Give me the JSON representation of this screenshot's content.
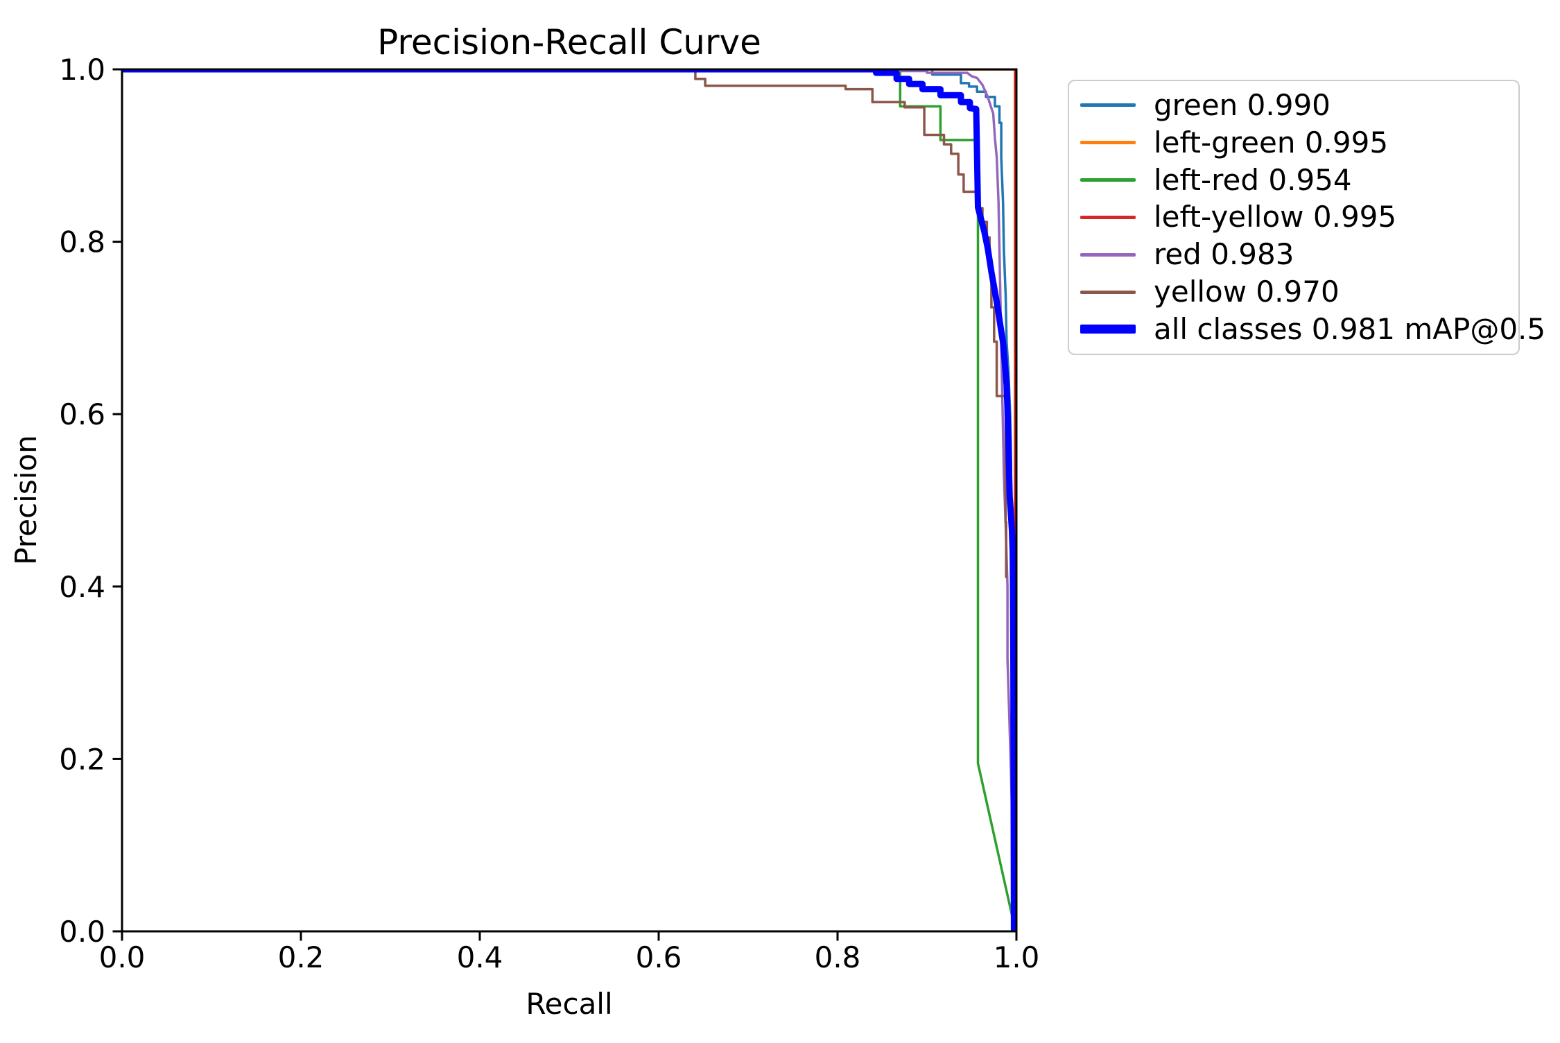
{
  "chart_data": {
    "type": "line",
    "title": "Precision-Recall Curve",
    "xlabel": "Recall",
    "ylabel": "Precision",
    "xlim": [
      0.0,
      1.0
    ],
    "ylim": [
      0.0,
      1.0
    ],
    "grid": false,
    "xticks": [
      "0.0",
      "0.2",
      "0.4",
      "0.6",
      "0.8",
      "1.0"
    ],
    "yticks": [
      "0.0",
      "0.2",
      "0.4",
      "0.6",
      "0.8",
      "1.0"
    ],
    "axis_color": "#000000",
    "legend": {
      "position": "upper-right-outside",
      "border_color": "#cccccc",
      "background": "#ffffff"
    },
    "series": [
      {
        "name": "green",
        "label": "green 0.990",
        "ap": 0.99,
        "color": "#1f77b4",
        "line_width": 3.5,
        "legend_line_width": 5,
        "points": [
          [
            0,
            1
          ],
          [
            0.906,
            1
          ],
          [
            0.906,
            0.994
          ],
          [
            0.938,
            0.994
          ],
          [
            0.938,
            0.984
          ],
          [
            0.947,
            0.984
          ],
          [
            0.947,
            0.98
          ],
          [
            0.956,
            0.98
          ],
          [
            0.956,
            0.974
          ],
          [
            0.966,
            0.974
          ],
          [
            0.966,
            0.968
          ],
          [
            0.976,
            0.968
          ],
          [
            0.976,
            0.957
          ],
          [
            0.981,
            0.957
          ],
          [
            0.981,
            0.938
          ],
          [
            0.983,
            0.938
          ],
          [
            0.983,
            0.898
          ],
          [
            0.985,
            0.845
          ],
          [
            0.986,
            0.791
          ],
          [
            0.988,
            0.737
          ],
          [
            0.989,
            0.684
          ],
          [
            0.991,
            0.652
          ],
          [
            0.993,
            0.598
          ],
          [
            0.994,
            0.544
          ],
          [
            0.994,
            0.405
          ]
        ]
      },
      {
        "name": "left-green",
        "label": "left-green 0.995",
        "ap": 0.995,
        "color": "#ff7f0e",
        "line_width": 3.5,
        "legend_line_width": 5,
        "points": [
          [
            0,
            1
          ],
          [
            0.9983,
            1
          ],
          [
            0.9983,
            0
          ]
        ]
      },
      {
        "name": "left-red",
        "label": "left-red 0.954",
        "ap": 0.954,
        "color": "#2ca02c",
        "line_width": 3.5,
        "legend_line_width": 5,
        "points": [
          [
            0,
            1
          ],
          [
            0.87,
            1
          ],
          [
            0.87,
            0.957
          ],
          [
            0.915,
            0.957
          ],
          [
            0.915,
            0.918
          ],
          [
            0.957,
            0.918
          ],
          [
            0.957,
            0.195
          ],
          [
            0.998,
            0.005
          ]
        ]
      },
      {
        "name": "left-yellow",
        "label": "left-yellow 0.995",
        "ap": 0.995,
        "color": "#d62728",
        "line_width": 3.5,
        "legend_line_width": 5,
        "points": [
          [
            0,
            1
          ],
          [
            0.9988,
            1
          ],
          [
            0.9988,
            0
          ]
        ]
      },
      {
        "name": "red",
        "label": "red 0.983",
        "ap": 0.983,
        "color": "#9467bd",
        "line_width": 3.5,
        "legend_line_width": 5,
        "points": [
          [
            0,
            1
          ],
          [
            0.842,
            1
          ],
          [
            0.842,
            0.998
          ],
          [
            0.9,
            0.998
          ],
          [
            0.9,
            0.996
          ],
          [
            0.945,
            0.996
          ],
          [
            0.95,
            0.992
          ],
          [
            0.956,
            0.99
          ],
          [
            0.962,
            0.982
          ],
          [
            0.968,
            0.968
          ],
          [
            0.972,
            0.955
          ],
          [
            0.974,
            0.949
          ],
          [
            0.976,
            0.92
          ],
          [
            0.978,
            0.898
          ],
          [
            0.98,
            0.845
          ],
          [
            0.981,
            0.791
          ],
          [
            0.982,
            0.737
          ],
          [
            0.983,
            0.68
          ],
          [
            0.985,
            0.58
          ],
          [
            0.986,
            0.53
          ],
          [
            0.988,
            0.47
          ],
          [
            0.99,
            0.4
          ],
          [
            0.99,
            0.316
          ],
          [
            0.992,
            0.25
          ],
          [
            0.994,
            0.18
          ],
          [
            0.996,
            0.1
          ],
          [
            0.998,
            0
          ]
        ]
      },
      {
        "name": "yellow",
        "label": "yellow 0.970",
        "ap": 0.97,
        "color": "#8c564b",
        "line_width": 3.5,
        "legend_line_width": 5,
        "points": [
          [
            0,
            1
          ],
          [
            0.641,
            1
          ],
          [
            0.641,
            0.989
          ],
          [
            0.652,
            0.989
          ],
          [
            0.652,
            0.981
          ],
          [
            0.809,
            0.981
          ],
          [
            0.809,
            0.977
          ],
          [
            0.839,
            0.977
          ],
          [
            0.839,
            0.962
          ],
          [
            0.875,
            0.962
          ],
          [
            0.875,
            0.956
          ],
          [
            0.897,
            0.956
          ],
          [
            0.897,
            0.924
          ],
          [
            0.919,
            0.924
          ],
          [
            0.919,
            0.913
          ],
          [
            0.927,
            0.913
          ],
          [
            0.927,
            0.902
          ],
          [
            0.935,
            0.902
          ],
          [
            0.935,
            0.878
          ],
          [
            0.941,
            0.878
          ],
          [
            0.941,
            0.858
          ],
          [
            0.955,
            0.858
          ],
          [
            0.955,
            0.839
          ],
          [
            0.962,
            0.839
          ],
          [
            0.962,
            0.823
          ],
          [
            0.967,
            0.823
          ],
          [
            0.967,
            0.805
          ],
          [
            0.97,
            0.805
          ],
          [
            0.97,
            0.764
          ],
          [
            0.972,
            0.764
          ],
          [
            0.972,
            0.724
          ],
          [
            0.975,
            0.724
          ],
          [
            0.975,
            0.684
          ],
          [
            0.978,
            0.684
          ],
          [
            0.978,
            0.621
          ],
          [
            0.988,
            0.621
          ],
          [
            0.988,
            0.475
          ],
          [
            0.9885,
            0.475
          ],
          [
            0.9885,
            0.41
          ]
        ]
      },
      {
        "name": "all-classes",
        "label": "all classes 0.981 mAP@0.5",
        "ap": 0.981,
        "color": "#0000ff",
        "line_width": 9,
        "legend_line_width": 13,
        "points": [
          [
            0,
            1
          ],
          [
            0.843,
            1
          ],
          [
            0.843,
            0.996
          ],
          [
            0.866,
            0.996
          ],
          [
            0.866,
            0.989
          ],
          [
            0.88,
            0.989
          ],
          [
            0.88,
            0.983
          ],
          [
            0.895,
            0.983
          ],
          [
            0.895,
            0.977
          ],
          [
            0.915,
            0.977
          ],
          [
            0.915,
            0.97
          ],
          [
            0.938,
            0.97
          ],
          [
            0.938,
            0.962
          ],
          [
            0.948,
            0.962
          ],
          [
            0.948,
            0.955
          ],
          [
            0.955,
            0.954
          ],
          [
            0.956,
            0.9
          ],
          [
            0.957,
            0.84
          ],
          [
            0.96,
            0.828
          ],
          [
            0.964,
            0.812
          ],
          [
            0.968,
            0.792
          ],
          [
            0.972,
            0.765
          ],
          [
            0.976,
            0.742
          ],
          [
            0.979,
            0.724
          ],
          [
            0.982,
            0.703
          ],
          [
            0.985,
            0.683
          ],
          [
            0.987,
            0.66
          ],
          [
            0.989,
            0.634
          ],
          [
            0.99,
            0.605
          ],
          [
            0.991,
            0.573
          ],
          [
            0.9915,
            0.545
          ],
          [
            0.992,
            0.523
          ],
          [
            0.9925,
            0.504
          ],
          [
            0.9935,
            0.49
          ],
          [
            0.995,
            0.465
          ],
          [
            0.9958,
            0.44
          ],
          [
            0.9962,
            0.4
          ],
          [
            0.9966,
            0.3
          ],
          [
            0.9969,
            0.15
          ],
          [
            0.9972,
            0
          ]
        ]
      }
    ]
  }
}
